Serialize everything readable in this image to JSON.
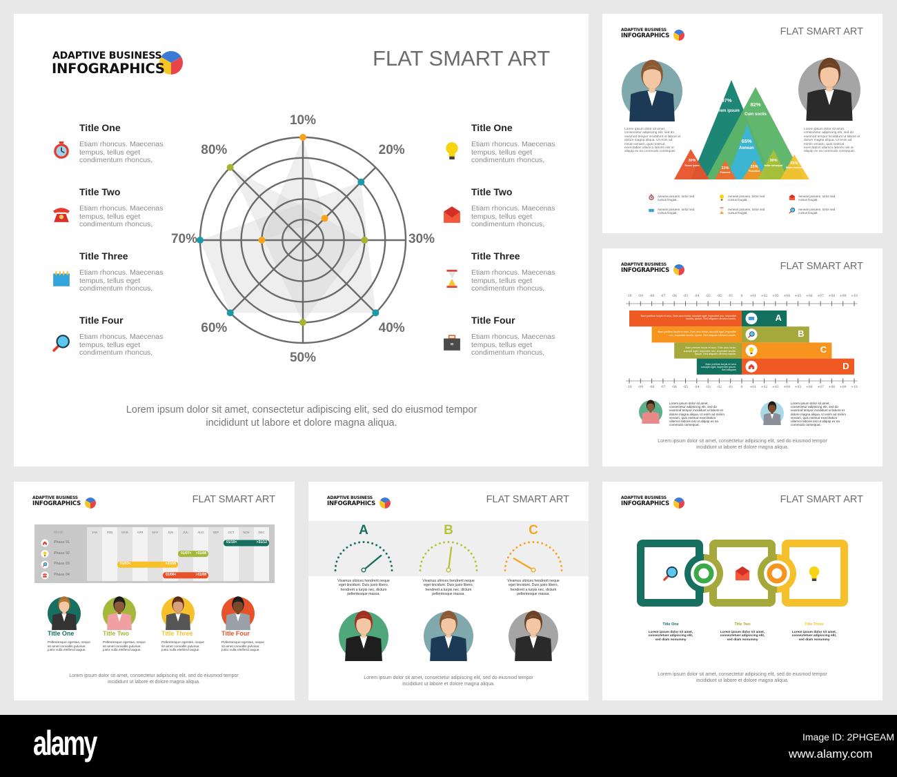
{
  "logo": {
    "line1": "ADAPTIVE BUSINESS",
    "line2": "INFOGRAPHICS"
  },
  "slide_title": "FLAT SMART ART",
  "caption": {
    "line1": "Lorem ipsum dolor sit amet, consectetur adipiscing elit, sed do eiusmod tempor",
    "line2": "incididunt ut labore et dolore magna aliqua."
  },
  "colors": {
    "teal": "#17705f",
    "green": "#5db56a",
    "blue": "#3bb5d8",
    "olive": "#a5b03a",
    "orange": "#f7941d",
    "red": "#e8522a",
    "yellow": "#f6c12c",
    "radar_orange": "#f7a21b",
    "radar_teal": "#1a9aa8",
    "radar_olive": "#a9b332",
    "grid": "#6a6a6a"
  },
  "main": {
    "left_items": [
      {
        "title": "Title One",
        "icon": "alarm-clock",
        "text": "Etiam rhoncus. Maecenas tempus, tellus eget condimentum rhoncus,"
      },
      {
        "title": "Title Two",
        "icon": "telephone",
        "text": "Etiam rhoncus. Maecenas tempus, tellus eget condimentum rhoncus,"
      },
      {
        "title": "Title Three",
        "icon": "calendar",
        "text": "Etiam rhoncus. Maecenas tempus, tellus eget condimentum rhoncus,"
      },
      {
        "title": "Title Four",
        "icon": "magnifier",
        "text": "Etiam rhoncus. Maecenas tempus, tellus eget condimentum rhoncus,"
      }
    ],
    "right_items": [
      {
        "title": "Title One",
        "icon": "light-bulb",
        "text": "Etiam rhoncus. Maecenas tempus, tellus eget condimentum rhoncus,"
      },
      {
        "title": "Title Two",
        "icon": "envelope",
        "text": "Etiam rhoncus. Maecenas tempus, tellus eget condimentum rhoncus,"
      },
      {
        "title": "Title Three",
        "icon": "hourglass",
        "text": "Etiam rhoncus. Maecenas tempus, tellus eget condimentum rhoncus,"
      },
      {
        "title": "Title Four",
        "icon": "briefcase",
        "text": "Etiam rhoncus. Maecenas tempus, tellus eget condimentum rhoncus,"
      }
    ]
  },
  "chart_data": {
    "type": "radar",
    "axes": [
      "10%",
      "20%",
      "30%",
      "40%",
      "50%",
      "60%",
      "70%",
      "80%"
    ],
    "rings": 5,
    "grid": true,
    "series": [
      {
        "color": "#f7a21b",
        "values": [
          5,
          1.5,
          null,
          null,
          null,
          null,
          2,
          null
        ]
      },
      {
        "color": "#1a9aa8",
        "values": [
          null,
          4,
          null,
          5,
          null,
          5,
          5,
          null
        ]
      },
      {
        "color": "#a9b332",
        "values": [
          null,
          null,
          3,
          null,
          4,
          null,
          null,
          5
        ]
      }
    ]
  },
  "pyramid": {
    "paragraph": "Lorem ipsum dolor sit amet, consectetur adipiscing elit, sed do eiusmod tempor incididunt ut labore et dolore magna aliqua. Ut enim ad minim veniam, quis nostrud exercitation ullamco laboris nisi ut aliquip ex ea commodo consequat.",
    "peaks": [
      {
        "value": "97%",
        "label": "Lorem ipsum",
        "color": "#17826f"
      },
      {
        "value": "82%",
        "label": "Cum sociis",
        "color": "#5db56a"
      },
      {
        "value": "65%",
        "label": "Aenean",
        "color": "#3bb5d8"
      },
      {
        "value": "30%",
        "label": "Donec quam",
        "color": "#e8522a"
      },
      {
        "value": "13%",
        "label": "Praesent",
        "color": "#f26a2a"
      },
      {
        "value": "15%",
        "label": "Phasellus",
        "color": "#f7941d"
      },
      {
        "value": "30%",
        "label": "Nulla consequat",
        "color": "#a8c038"
      },
      {
        "value": "25%",
        "label": "Etiam rhoncus",
        "color": "#f6c12c"
      }
    ],
    "legend": [
      {
        "icon": "alarm-clock",
        "text": "Aenean posuere, tortor sed cursus feugiat."
      },
      {
        "icon": "light-bulb",
        "text": "Aenean posuere, tortor sed cursus feugiat."
      },
      {
        "icon": "envelope",
        "text": "Aenean posuere, tortor sed cursus feugiat."
      },
      {
        "icon": "credit-card",
        "text": "Aenean posuere, tortor sed cursus feugiat."
      },
      {
        "icon": "hourglass",
        "text": "Aenean posuere, tortor sed cursus feugiat."
      },
      {
        "icon": "magnifier",
        "text": "Aenean posuere, tortor sed cursus feugiat."
      }
    ]
  },
  "bars": {
    "ticks_left": [
      "-10",
      "-09",
      "-08",
      "-07",
      "-06",
      "-05",
      "-04",
      "-03",
      "-02",
      "-01"
    ],
    "tick_zero": "0",
    "ticks_right": [
      "+01",
      "+02",
      "+03",
      "+04",
      "+05",
      "+06",
      "+07",
      "+08",
      "+09",
      "+10"
    ],
    "rows": [
      {
        "letter": "A",
        "left": -10,
        "right": 4,
        "left_color": "#ef5a24",
        "right_color": "#12705f",
        "icon": "credit-card",
        "text": "Nam pretium turpis et arcu. Duis arcu tortor, suscipit eget, imperdiet nec, imperdiet iaculis, ipsum. Sed aliquam ultrices mauris."
      },
      {
        "letter": "B",
        "left": -8,
        "right": 6,
        "left_color": "#f7941d",
        "right_color": "#a5a83a",
        "icon": "magnifier",
        "text": "Nam pretium turpis et arcu. Duis arcu tortor, suscipit eget, imperdiet nec, imperdiet iaculis, ipsum. Sed aliquam ultrices mauris."
      },
      {
        "letter": "C",
        "left": -6,
        "right": 8,
        "left_color": "#a5a83a",
        "right_color": "#f7941d",
        "icon": "light-bulb",
        "text": "Nam pretium turpis et arcu. Duis arcu tortor, suscipit eget, imperdiet nec, imperdiet iaculis, ipsum. Sed aliquam ultrices mauris."
      },
      {
        "letter": "D",
        "left": -4,
        "right": 10,
        "left_color": "#12705f",
        "right_color": "#ef5a24",
        "icon": "home",
        "text": "Nam pretium turpis et arcu suscipit eget, imperdiet ipsum. Sed aliquam"
      }
    ],
    "paragraph": "Lorem ipsum dolor sit amet, consectetur adipiscing elit, sed do eiusmod tempor incididunt ut labore et dolore magna aliqua. Ut enim ad minim veniam, quis nostrud exercitation ullamco laboris nisi ut aliquip ex ea commodo consequat."
  },
  "gantt": {
    "header_label": "Month",
    "months": [
      "JAN",
      "FEB",
      "MAR",
      "APR",
      "MAY",
      "JUN",
      "JUL",
      "AUG",
      "SEP",
      "OCT",
      "NOV",
      "DEC"
    ],
    "phases": [
      {
        "label": "Phase 01",
        "icon": "home",
        "start_month": 10,
        "end_month": 12,
        "start": "01/10<",
        "end": ">31/12",
        "color": "#17705f"
      },
      {
        "label": "Phase 02",
        "icon": "light-bulb",
        "start_month": 7,
        "end_month": 8,
        "start": "01/07<",
        "end": ">31/08",
        "color": "#a5b83a"
      },
      {
        "label": "Phase 03",
        "icon": "magnifier",
        "start_month": 3,
        "end_month": 6,
        "start": "01/03<",
        "end": ">31/06",
        "color": "#f6c12c"
      },
      {
        "label": "Phase 04",
        "icon": "telephone",
        "start_month": 6,
        "end_month": 8,
        "start": "01/06<",
        "end": ">31/08",
        "color": "#e8522a"
      }
    ],
    "people": [
      {
        "title": "Title One",
        "color": "#17705f",
        "text": "Pellentesque egestas, neque sit amet convallis pulvinar, justo nulla eleifend augue."
      },
      {
        "title": "Title Two",
        "color": "#a5b83a",
        "text": "Pellentesque egestas, neque sit amet convallis pulvinar, justo nulla eleifend augue."
      },
      {
        "title": "Title Three",
        "color": "#f6c12c",
        "text": "Pellentesque egestas, neque sit amet convallis pulvinar, justo nulla eleifend augue."
      },
      {
        "title": "Title Four",
        "color": "#e8522a",
        "text": "Pellentesque egestas, neque sit amet convallis pulvinar, justo nulla eleifend augue."
      }
    ]
  },
  "gauges": [
    {
      "letter": "A",
      "color": "#17705f",
      "level": 0.78,
      "avatar_bg": "#4fa77b",
      "text": "Vivamus ultrices hendrerit neque eget tincidunt. Duis justo libero, hendrerit a turpis nec, dictum pellentesque massa."
    },
    {
      "letter": "B",
      "color": "#b5c23a",
      "level": 0.54,
      "avatar_bg": "#7fa9ad",
      "text": "Vivamus ultrices hendrerit neque eget tincidunt. Duis justo libero, hendrerit a turpis nec, dictum pellentesque massa."
    },
    {
      "letter": "C",
      "color": "#f5a623",
      "level": 0.17,
      "avatar_bg": "#a5a5a5",
      "text": "Vivamus ultrices hendrerit neque eget tincidunt. Duis justo libero, hendrerit a turpis nec, dictum pellentesque massa."
    }
  ],
  "chain": [
    {
      "title": "Title One",
      "color": "#17705f",
      "icon": "magnifier",
      "text": "Lorem ipsum dolor sit amet, consectetuer adipiscing elit, sed diam nonummy"
    },
    {
      "title": "Title Two",
      "color": "#a5a83a",
      "icon": "envelope",
      "text": "Lorem ipsum dolor sit amet, consectetuer adipiscing elit, sed diam nonummy"
    },
    {
      "title": "Title Three",
      "color": "#f6bf2c",
      "icon": "light-bulb",
      "text": "Lorem ipsum dolor sit amet, consectetuer adipiscing elit, sed diam nonummy"
    }
  ],
  "chain_rings": [
    "#3aaa48",
    "#f7941d"
  ],
  "watermark": {
    "brand": "alamy",
    "image_id": "Image ID: 2PHGEAM",
    "url": "www.alamy.com"
  }
}
